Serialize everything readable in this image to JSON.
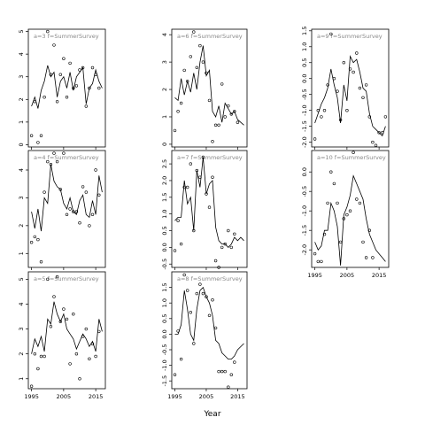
{
  "figure": {
    "xlabel": "Year"
  },
  "chart_data": [
    {
      "type": "line",
      "panel": "a=3",
      "title": "a=3",
      "subtitle": "f=SummerSurvey",
      "xlim": [
        1994,
        2018
      ],
      "ylim": [
        -0.1,
        5.1
      ],
      "xticks": [
        1995,
        2005,
        2015
      ],
      "yticks": [
        0,
        1,
        2,
        3,
        4,
        5
      ],
      "show_xtick_labels": false,
      "fit_x": [
        1995,
        1996,
        1997,
        1998,
        1999,
        2000,
        2001,
        2002,
        2003,
        2004,
        2005,
        2006,
        2007,
        2008,
        2009,
        2010,
        2011,
        2012,
        2013,
        2014,
        2015,
        2016,
        2017
      ],
      "fit_y": [
        1.7,
        2.1,
        1.6,
        2.4,
        2.8,
        3.5,
        3.0,
        3.2,
        2.1,
        2.8,
        3.0,
        2.5,
        3.2,
        2.4,
        3.0,
        3.2,
        3.4,
        1.8,
        2.5,
        2.7,
        3.3,
        2.8,
        2.5
      ],
      "points": [
        [
          1995,
          0.4
        ],
        [
          1996,
          1.9
        ],
        [
          1997,
          0.1
        ],
        [
          1998,
          0.4
        ],
        [
          1999,
          2.1
        ],
        [
          2000,
          5.0
        ],
        [
          2001,
          3.1
        ],
        [
          2002,
          4.4
        ],
        [
          2003,
          1.9
        ],
        [
          2004,
          3.1
        ],
        [
          2005,
          3.8
        ],
        [
          2006,
          2.1
        ],
        [
          2007,
          3.6
        ],
        [
          2008,
          2.5
        ],
        [
          2009,
          2.6
        ],
        [
          2010,
          3.3
        ],
        [
          2011,
          3.4
        ],
        [
          2012,
          1.7
        ],
        [
          2013,
          2.5
        ],
        [
          2014,
          3.4
        ],
        [
          2015,
          3.1
        ],
        [
          2016,
          2.5
        ]
      ]
    },
    {
      "type": "line",
      "panel": "a=4",
      "title": "a=4",
      "subtitle": "f=SummerSurvey",
      "xlim": [
        1994,
        2018
      ],
      "ylim": [
        0.5,
        4.7
      ],
      "xticks": [
        1995,
        2005,
        2015
      ],
      "yticks": [
        1,
        2,
        3,
        4
      ],
      "show_xtick_labels": false,
      "fit_x": [
        1995,
        1996,
        1997,
        1998,
        1999,
        2000,
        2001,
        2002,
        2003,
        2004,
        2005,
        2006,
        2007,
        2008,
        2009,
        2010,
        2011,
        2012,
        2013,
        2014,
        2015,
        2016,
        2017
      ],
      "fit_y": [
        2.5,
        1.9,
        2.6,
        1.8,
        3.0,
        2.8,
        4.2,
        3.6,
        3.4,
        3.3,
        2.8,
        2.6,
        3.0,
        2.5,
        2.4,
        2.9,
        3.1,
        2.4,
        2.3,
        2.9,
        2.4,
        3.8,
        3.2
      ],
      "points": [
        [
          1995,
          1.4
        ],
        [
          1996,
          1.6
        ],
        [
          1997,
          1.5
        ],
        [
          1998,
          0.7
        ],
        [
          1999,
          3.2
        ],
        [
          2000,
          4.3
        ],
        [
          2001,
          4.2
        ],
        [
          2002,
          4.6
        ],
        [
          2003,
          4.3
        ],
        [
          2004,
          3.3
        ],
        [
          2005,
          4.6
        ],
        [
          2006,
          2.4
        ],
        [
          2007,
          2.6
        ],
        [
          2008,
          2.5
        ],
        [
          2009,
          2.5
        ],
        [
          2010,
          2.1
        ],
        [
          2011,
          3.4
        ],
        [
          2012,
          3.2
        ],
        [
          2013,
          2.0
        ],
        [
          2014,
          2.4
        ],
        [
          2015,
          4.0
        ],
        [
          2016,
          3.1
        ]
      ]
    },
    {
      "type": "line",
      "panel": "a=5",
      "title": "a=5",
      "subtitle": "f=SummerSurvey",
      "xlim": [
        1994,
        2018
      ],
      "ylim": [
        0.6,
        5.3
      ],
      "xticks": [
        1995,
        2005,
        2015
      ],
      "yticks": [
        1,
        2,
        3,
        4,
        5
      ],
      "show_xtick_labels": true,
      "fit_x": [
        1995,
        1996,
        1997,
        1998,
        1999,
        2000,
        2001,
        2002,
        2003,
        2004,
        2005,
        2006,
        2007,
        2008,
        2009,
        2010,
        2011,
        2012,
        2013,
        2014,
        2015,
        2016,
        2017
      ],
      "fit_y": [
        2.0,
        2.6,
        2.3,
        2.7,
        2.1,
        3.4,
        3.2,
        4.1,
        3.6,
        3.3,
        3.6,
        3.0,
        2.8,
        2.6,
        2.2,
        2.5,
        2.8,
        2.6,
        2.3,
        2.5,
        2.1,
        3.4,
        2.9
      ],
      "points": [
        [
          1995,
          0.7
        ],
        [
          1996,
          2.0
        ],
        [
          1997,
          1.4
        ],
        [
          1998,
          1.9
        ],
        [
          1999,
          1.9
        ],
        [
          2000,
          5.0
        ],
        [
          2001,
          3.1
        ],
        [
          2002,
          4.3
        ],
        [
          2003,
          5.1
        ],
        [
          2004,
          3.3
        ],
        [
          2005,
          3.8
        ],
        [
          2006,
          3.4
        ],
        [
          2007,
          1.6
        ],
        [
          2008,
          3.6
        ],
        [
          2009,
          2.0
        ],
        [
          2010,
          1.0
        ],
        [
          2011,
          2.7
        ],
        [
          2012,
          3.0
        ],
        [
          2013,
          1.8
        ],
        [
          2014,
          2.4
        ],
        [
          2015,
          1.9
        ],
        [
          2016,
          2.9
        ]
      ]
    },
    {
      "type": "line",
      "panel": "a=6",
      "title": "a=6",
      "subtitle": "f=SummerSurvey",
      "xlim": [
        1994,
        2018
      ],
      "ylim": [
        -0.1,
        4.2
      ],
      "xticks": [
        1995,
        2005,
        2015
      ],
      "yticks": [
        0,
        1,
        2,
        3,
        4
      ],
      "show_xtick_labels": false,
      "fit_x": [
        1995,
        1996,
        1997,
        1998,
        1999,
        2000,
        2001,
        2002,
        2003,
        2004,
        2005,
        2006,
        2007,
        2008,
        2009,
        2010,
        2011,
        2012,
        2013,
        2014,
        2015,
        2016,
        2017
      ],
      "fit_y": [
        1.7,
        1.6,
        2.4,
        1.8,
        2.3,
        1.9,
        2.6,
        2.0,
        3.0,
        3.6,
        2.5,
        2.7,
        1.2,
        1.0,
        1.4,
        0.8,
        1.5,
        1.3,
        1.1,
        1.2,
        0.9,
        0.8,
        0.7
      ],
      "points": [
        [
          1995,
          0.5
        ],
        [
          1996,
          1.2
        ],
        [
          1997,
          1.5
        ],
        [
          1998,
          2.7
        ],
        [
          1999,
          2.3
        ],
        [
          2000,
          3.2
        ],
        [
          2001,
          4.1
        ],
        [
          2002,
          2.8
        ],
        [
          2003,
          3.6
        ],
        [
          2004,
          3.0
        ],
        [
          2005,
          2.6
        ],
        [
          2006,
          1.6
        ],
        [
          2007,
          0.1
        ],
        [
          2008,
          0.7
        ],
        [
          2009,
          0.7
        ],
        [
          2010,
          2.2
        ],
        [
          2011,
          1.0
        ],
        [
          2012,
          1.4
        ],
        [
          2013,
          1.1
        ],
        [
          2014,
          1.2
        ],
        [
          2015,
          0.8
        ]
      ]
    },
    {
      "type": "line",
      "panel": "a=7",
      "title": "a=7",
      "subtitle": "f=SummerSurvey",
      "xlim": [
        1994,
        2018
      ],
      "ylim": [
        -0.6,
        2.9
      ],
      "xticks": [
        1995,
        2005,
        2015
      ],
      "yticks": [
        -0.5,
        0.0,
        0.5,
        1.0,
        1.5,
        2.0,
        2.5
      ],
      "show_xtick_labels": false,
      "fit_x": [
        1995,
        1996,
        1997,
        1998,
        1999,
        2000,
        2001,
        2002,
        2003,
        2004,
        2005,
        2006,
        2007,
        2008,
        2009,
        2010,
        2011,
        2012,
        2013,
        2014,
        2015,
        2016,
        2017
      ],
      "fit_y": [
        0.8,
        0.9,
        0.9,
        2.0,
        1.3,
        1.5,
        0.5,
        2.3,
        1.8,
        2.7,
        1.6,
        1.9,
        2.0,
        0.6,
        0.2,
        0.1,
        0.1,
        0.0,
        0.1,
        0.3,
        0.2,
        0.3,
        0.2
      ],
      "points": [
        [
          1995,
          -0.1
        ],
        [
          1996,
          0.8
        ],
        [
          1997,
          0.1
        ],
        [
          1998,
          1.8
        ],
        [
          1999,
          1.8
        ],
        [
          2000,
          2.5
        ],
        [
          2001,
          0.5
        ],
        [
          2002,
          2.3
        ],
        [
          2003,
          2.1
        ],
        [
          2004,
          2.7
        ],
        [
          2005,
          1.6
        ],
        [
          2006,
          1.2
        ],
        [
          2007,
          2.1
        ],
        [
          2008,
          -0.4
        ],
        [
          2009,
          -0.6
        ],
        [
          2010,
          0.0
        ],
        [
          2011,
          0.1
        ],
        [
          2012,
          0.5
        ],
        [
          2013,
          0.0
        ],
        [
          2014,
          0.4
        ]
      ]
    },
    {
      "type": "line",
      "panel": "a=8",
      "title": "a=8",
      "subtitle": "f=SummerSurvey",
      "xlim": [
        1994,
        2018
      ],
      "ylim": [
        -1.75,
        2.0
      ],
      "xticks": [
        1995,
        2005,
        2015
      ],
      "yticks": [
        -1.5,
        -1.0,
        -0.5,
        0.0,
        0.5,
        1.0,
        1.5
      ],
      "show_xtick_labels": true,
      "fit_x": [
        1995,
        1996,
        1997,
        1998,
        1999,
        2000,
        2001,
        2002,
        2003,
        2004,
        2005,
        2006,
        2007,
        2008,
        2009,
        2010,
        2011,
        2012,
        2013,
        2014,
        2015,
        2016,
        2017
      ],
      "fit_y": [
        0.0,
        0.0,
        0.3,
        1.4,
        0.8,
        0.0,
        -0.2,
        0.8,
        1.4,
        1.5,
        1.2,
        1.0,
        0.6,
        -0.2,
        -0.3,
        -0.6,
        -0.7,
        -0.8,
        -0.8,
        -0.7,
        -0.5,
        -0.4,
        -0.3
      ],
      "points": [
        [
          1995,
          -1.3
        ],
        [
          1996,
          0.1
        ],
        [
          1997,
          -0.8
        ],
        [
          1998,
          1.9
        ],
        [
          1999,
          1.4
        ],
        [
          2000,
          0.7
        ],
        [
          2001,
          -0.3
        ],
        [
          2002,
          1.3
        ],
        [
          2003,
          1.6
        ],
        [
          2004,
          1.3
        ],
        [
          2005,
          1.2
        ],
        [
          2006,
          0.6
        ],
        [
          2007,
          1.1
        ],
        [
          2008,
          0.2
        ],
        [
          2009,
          -1.2
        ],
        [
          2010,
          -1.2
        ],
        [
          2011,
          -1.2
        ],
        [
          2012,
          -1.7
        ],
        [
          2013,
          -1.3
        ],
        [
          2014,
          -0.9
        ]
      ]
    },
    {
      "type": "line",
      "panel": "a=9",
      "title": "a=9",
      "subtitle": "f=SummerSurvey",
      "xlim": [
        1994,
        2018
      ],
      "ylim": [
        -2.15,
        1.55
      ],
      "xticks": [
        1995,
        2005,
        2015
      ],
      "yticks": [
        -2.0,
        -1.5,
        -1.0,
        -0.5,
        0.0,
        0.5,
        1.0,
        1.5
      ],
      "show_xtick_labels": false,
      "fit_x": [
        1995,
        1996,
        1997,
        1998,
        1999,
        2000,
        2001,
        2002,
        2003,
        2004,
        2005,
        2006,
        2007,
        2008,
        2009,
        2010,
        2011,
        2012,
        2013,
        2014,
        2015,
        2016,
        2017
      ],
      "fit_y": [
        -1.4,
        -1.1,
        -0.8,
        -0.6,
        -0.3,
        0.3,
        -0.2,
        -0.6,
        -1.4,
        -0.2,
        -0.7,
        0.7,
        0.5,
        0.6,
        0.2,
        -0.3,
        -0.4,
        -1.1,
        -1.5,
        -1.6,
        -1.7,
        -1.8,
        -1.5
      ],
      "points": [
        [
          1995,
          -1.9
        ],
        [
          1996,
          -1.0
        ],
        [
          1997,
          -1.2
        ],
        [
          1998,
          -1.0
        ],
        [
          1999,
          -0.2
        ],
        [
          2000,
          1.4
        ],
        [
          2001,
          0.0
        ],
        [
          2002,
          -0.4
        ],
        [
          2003,
          -1.3
        ],
        [
          2004,
          0.5
        ],
        [
          2005,
          -1.0
        ],
        [
          2006,
          0.3
        ],
        [
          2007,
          0.2
        ],
        [
          2008,
          0.8
        ],
        [
          2009,
          -0.3
        ],
        [
          2010,
          -0.6
        ],
        [
          2011,
          -0.2
        ],
        [
          2012,
          -1.2
        ],
        [
          2013,
          -2.0
        ],
        [
          2014,
          -2.1
        ],
        [
          2015,
          -1.7
        ],
        [
          2016,
          -1.7
        ],
        [
          2017,
          -1.2
        ]
      ]
    },
    {
      "type": "line",
      "panel": "a=10",
      "title": "a=10",
      "subtitle": "f=SummerSurvey",
      "xlim": [
        1994,
        2018
      ],
      "ylim": [
        -2.45,
        0.55
      ],
      "xticks": [
        1995,
        2005,
        2015
      ],
      "yticks": [
        -2.0,
        -1.5,
        -1.0,
        -0.5,
        0.0
      ],
      "show_xtick_labels": true,
      "fit_x": [
        1995,
        1996,
        1997,
        1998,
        1999,
        2000,
        2001,
        2002,
        2003,
        2004,
        2005,
        2006,
        2007,
        2008,
        2009,
        2010,
        2011,
        2012,
        2013,
        2014,
        2015,
        2016,
        2017
      ],
      "fit_y": [
        -1.8,
        -2.0,
        -1.9,
        -1.5,
        -1.5,
        -0.8,
        -1.0,
        -1.4,
        -2.4,
        -1.1,
        -0.9,
        -0.6,
        -0.1,
        -0.3,
        -0.5,
        -0.7,
        -1.2,
        -1.6,
        -1.8,
        -2.0,
        -2.1,
        -2.2,
        -2.3
      ],
      "points": [
        [
          1995,
          -2.1
        ],
        [
          1996,
          -2.3
        ],
        [
          1997,
          -2.3
        ],
        [
          1998,
          -1.6
        ],
        [
          1999,
          -0.8
        ],
        [
          2000,
          0.0
        ],
        [
          2001,
          -0.3
        ],
        [
          2002,
          -0.8
        ],
        [
          2003,
          -1.8
        ],
        [
          2004,
          -1.2
        ],
        [
          2005,
          -1.1
        ],
        [
          2006,
          -1.0
        ],
        [
          2007,
          0.5
        ],
        [
          2008,
          -0.7
        ],
        [
          2009,
          -0.8
        ],
        [
          2010,
          -1.8
        ],
        [
          2011,
          -2.2
        ],
        [
          2012,
          -1.5
        ],
        [
          2013,
          -2.2
        ]
      ]
    }
  ]
}
